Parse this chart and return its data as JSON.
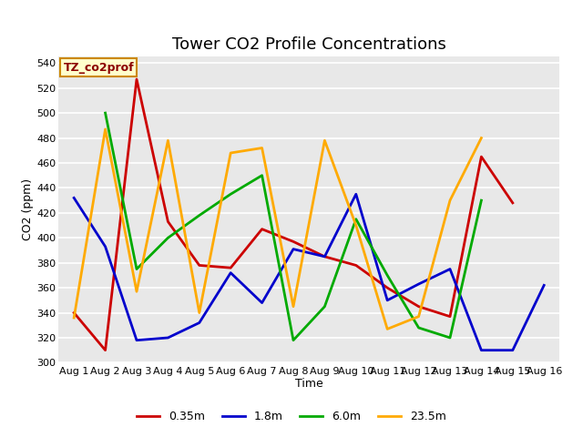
{
  "title": "Tower CO2 Profile Concentrations",
  "xlabel": "Time",
  "ylabel": "CO2 (ppm)",
  "ylim": [
    300,
    545
  ],
  "yticks": [
    300,
    320,
    340,
    360,
    380,
    400,
    420,
    440,
    460,
    480,
    500,
    520,
    540
  ],
  "x_labels": [
    "Aug 1",
    "Aug 2",
    "Aug 3",
    "Aug 4",
    "Aug 5",
    "Aug 6",
    "Aug 7",
    "Aug 8",
    "Aug 9",
    "Aug 10",
    "Aug 11",
    "Aug 12",
    "Aug 13",
    "Aug 14",
    "Aug 15",
    "Aug 16"
  ],
  "series": {
    "0.35m": {
      "color": "#cc0000",
      "values": [
        340,
        310,
        527,
        413,
        378,
        376,
        407,
        397,
        385,
        378,
        360,
        345,
        337,
        465,
        428,
        null
      ]
    },
    "1.8m": {
      "color": "#0000cc",
      "values": [
        432,
        393,
        318,
        320,
        332,
        372,
        348,
        391,
        385,
        435,
        350,
        363,
        375,
        310,
        310,
        362
      ]
    },
    "6.0m": {
      "color": "#00aa00",
      "values": [
        null,
        500,
        375,
        400,
        418,
        435,
        450,
        318,
        345,
        415,
        370,
        328,
        320,
        430,
        null,
        null
      ]
    },
    "23.5m": {
      "color": "#ffaa00",
      "values": [
        336,
        487,
        357,
        478,
        340,
        468,
        472,
        345,
        478,
        410,
        327,
        337,
        430,
        480,
        null,
        null
      ]
    }
  },
  "annotation_text": "TZ_co2prof",
  "annotation_color": "#8b0000",
  "annotation_bg": "#ffffcc",
  "annotation_border": "#cc8800",
  "legend_entries": [
    "0.35m",
    "1.8m",
    "6.0m",
    "23.5m"
  ],
  "background_color": "#e8e8e8",
  "grid_color": "#ffffff",
  "title_fontsize": 13,
  "tick_fontsize": 8,
  "ylabel_fontsize": 9,
  "xlabel_fontsize": 9
}
